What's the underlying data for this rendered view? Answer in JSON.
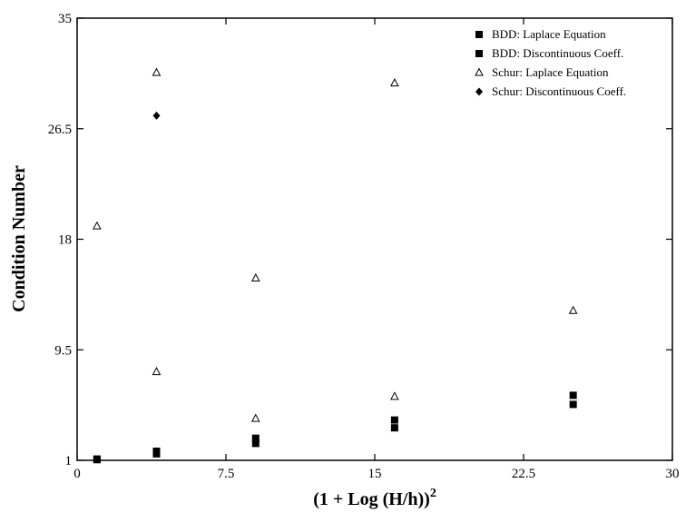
{
  "chart_data": {
    "type": "scatter",
    "xlabel_main": "(1 + Log (H/h))",
    "xlabel_sup": "2",
    "ylabel": "Condition Number",
    "xlim": [
      0,
      30
    ],
    "ylim": [
      1,
      35
    ],
    "x_ticks": [
      "0",
      "7.5",
      "15",
      "22.5",
      "30"
    ],
    "y_ticks": [
      "1",
      "9.5",
      "18",
      "26.5",
      "35"
    ],
    "legend_position": "top-right",
    "series": [
      {
        "name": "BDD: Laplace Equation",
        "marker": "square",
        "points": [
          [
            1,
            1.1
          ],
          [
            4,
            1.5
          ],
          [
            9,
            2.3
          ],
          [
            16,
            3.5
          ],
          [
            25,
            5.3
          ]
        ]
      },
      {
        "name": "BDD: Discontinuous Coeff.",
        "marker": "square",
        "points": [
          [
            1,
            1.05
          ],
          [
            4,
            1.7
          ],
          [
            9,
            2.7
          ],
          [
            16,
            4.1
          ],
          [
            25,
            6.0
          ]
        ]
      },
      {
        "name": "Schur: Laplace Equation",
        "marker": "open-triangle",
        "points": [
          [
            1,
            19.0
          ],
          [
            4,
            7.8
          ],
          [
            9,
            4.2
          ],
          [
            16,
            5.9
          ],
          [
            25,
            12.5
          ],
          [
            4,
            30.8
          ],
          [
            9,
            15.0
          ],
          [
            16,
            30.0
          ]
        ]
      },
      {
        "name": "Schur: Discontinuous Coeff.",
        "marker": "diamond",
        "points": [
          [
            4,
            27.5
          ]
        ]
      }
    ]
  }
}
